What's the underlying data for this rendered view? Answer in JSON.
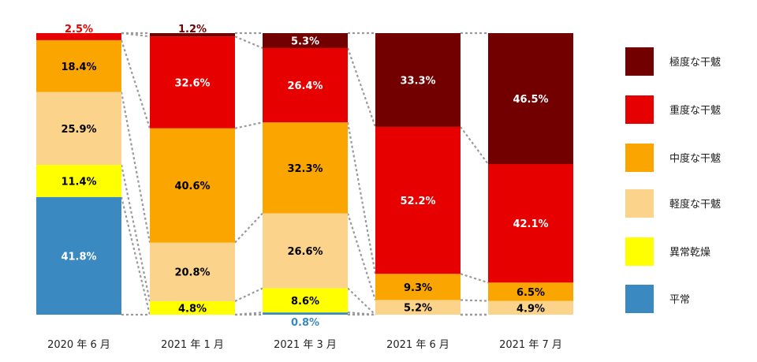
{
  "chart_data": {
    "type": "bar",
    "stacked": true,
    "normalized_percent": true,
    "categories": [
      "2020 年 6 月",
      "2021 年 1 月",
      "2021 年 3 月",
      "2021 年 6 月",
      "2021 年 7 月"
    ],
    "series": [
      {
        "name": "平常",
        "color": "#3a89c0",
        "values": [
          41.8,
          0,
          0.8,
          0,
          0
        ]
      },
      {
        "name": "異常乾燥",
        "color": "#ffff00",
        "values": [
          11.4,
          4.8,
          8.6,
          0,
          0
        ]
      },
      {
        "name": "軽度な干魃",
        "color": "#fbd38a",
        "values": [
          25.9,
          20.8,
          26.6,
          5.2,
          4.9
        ]
      },
      {
        "name": "中度な干魃",
        "color": "#fba600",
        "values": [
          18.4,
          40.6,
          32.3,
          9.3,
          6.5
        ]
      },
      {
        "name": "重度な干魃",
        "color": "#e60000",
        "values": [
          2.5,
          32.6,
          26.4,
          52.2,
          42.1
        ]
      },
      {
        "name": "極度な干魃",
        "color": "#720000",
        "values": [
          0,
          1.2,
          5.3,
          33.3,
          46.5
        ]
      }
    ],
    "value_labels": [
      [
        "41.8%",
        "",
        "0.8%",
        "",
        ""
      ],
      [
        "11.4%",
        "4.8%",
        "8.6%",
        "",
        ""
      ],
      [
        "25.9%",
        "20.8%",
        "26.6%",
        "5.2%",
        "4.9%"
      ],
      [
        "18.4%",
        "40.6%",
        "32.3%",
        "9.3%",
        "6.5%"
      ],
      [
        "2.5%",
        "32.6%",
        "26.4%",
        "52.2%",
        "42.1%"
      ],
      [
        "",
        "1.2%",
        "5.3%",
        "33.3%",
        "46.5%"
      ]
    ],
    "ylim": [
      0,
      100
    ],
    "grid": false,
    "connector_lines": "dotted",
    "legend_position": "right"
  }
}
